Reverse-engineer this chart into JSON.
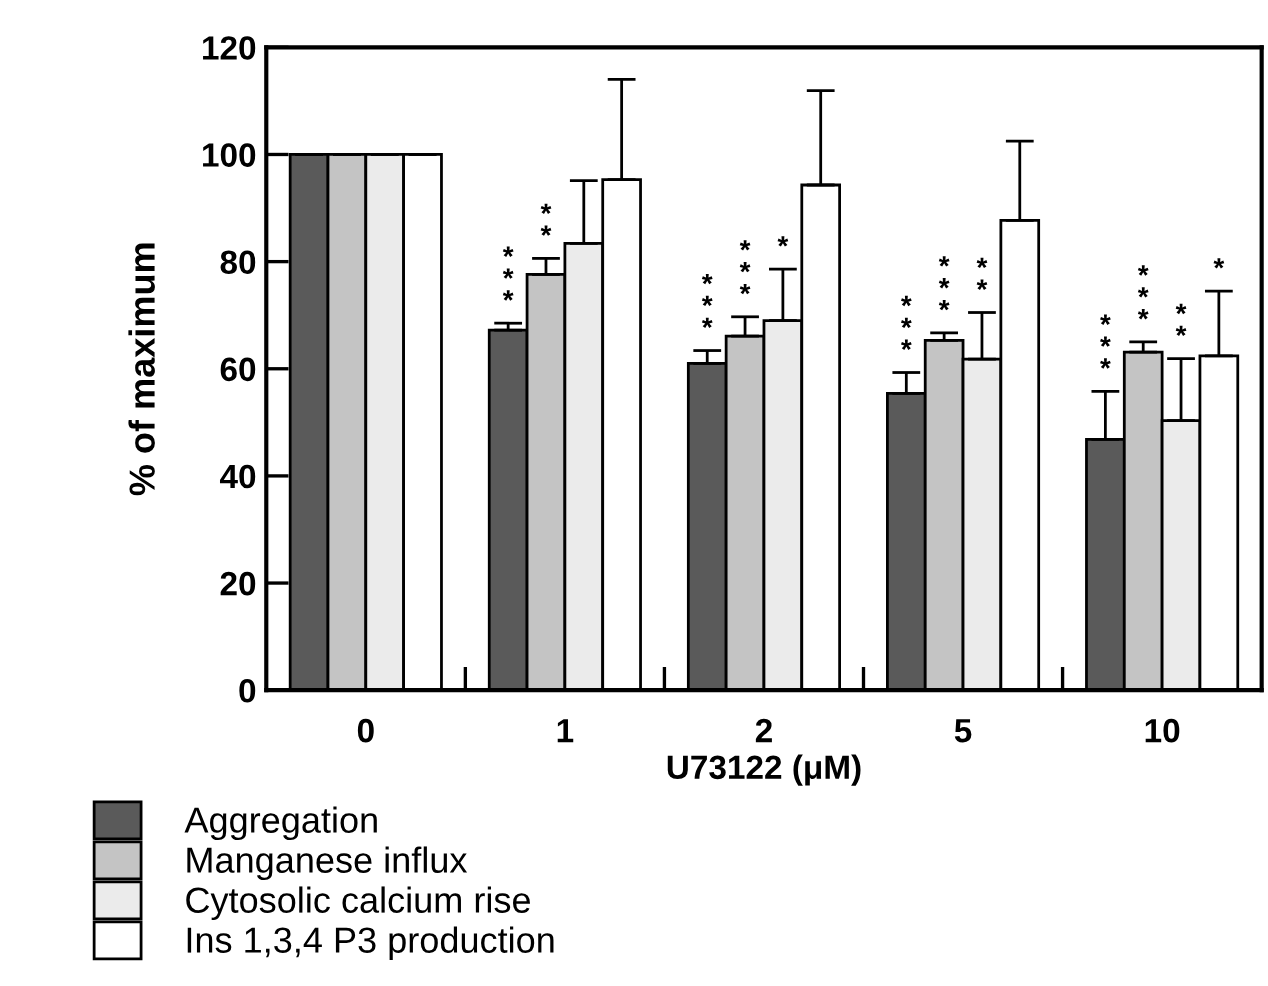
{
  "chart_data": {
    "type": "bar",
    "xlabel": "U73122 (μM)",
    "ylabel": "% of maximum",
    "categories": [
      "0",
      "1",
      "2",
      "5",
      "10"
    ],
    "series": [
      {
        "name": "Aggregation",
        "color": "#5a5a5a",
        "values": [
          100,
          67.2,
          61.0,
          55.4,
          46.8
        ],
        "errors": [
          null,
          1.3,
          2.4,
          3.9,
          9.0
        ],
        "value_labels": [
          null,
          "***",
          "***",
          "***",
          "***"
        ]
      },
      {
        "name": "Manganese influx",
        "color": "#c4c4c4",
        "values": [
          100,
          77.6,
          66.1,
          65.3,
          63.1
        ],
        "errors": [
          null,
          3.0,
          3.6,
          1.4,
          1.9
        ],
        "value_labels": [
          null,
          "**",
          "***",
          "***",
          "***"
        ]
      },
      {
        "name": "Cytosolic calcium rise",
        "color": "#ebebeb",
        "values": [
          100,
          83.4,
          69.0,
          61.8,
          50.3
        ],
        "errors": [
          null,
          11.7,
          9.6,
          8.7,
          11.6
        ],
        "value_labels": [
          null,
          null,
          "*",
          "**",
          "**"
        ]
      },
      {
        "name": "Ins 1,3,4 P3 production",
        "color": "#ffffff",
        "values": [
          100,
          95.3,
          94.3,
          87.7,
          62.4
        ],
        "errors": [
          null,
          18.7,
          17.6,
          14.8,
          12.1
        ],
        "value_labels": [
          null,
          null,
          null,
          null,
          "*"
        ]
      }
    ],
    "ylim": [
      0,
      120
    ],
    "yticks": [
      0,
      20,
      40,
      60,
      80,
      100,
      120
    ],
    "grid": false,
    "legend": "bottom left"
  }
}
